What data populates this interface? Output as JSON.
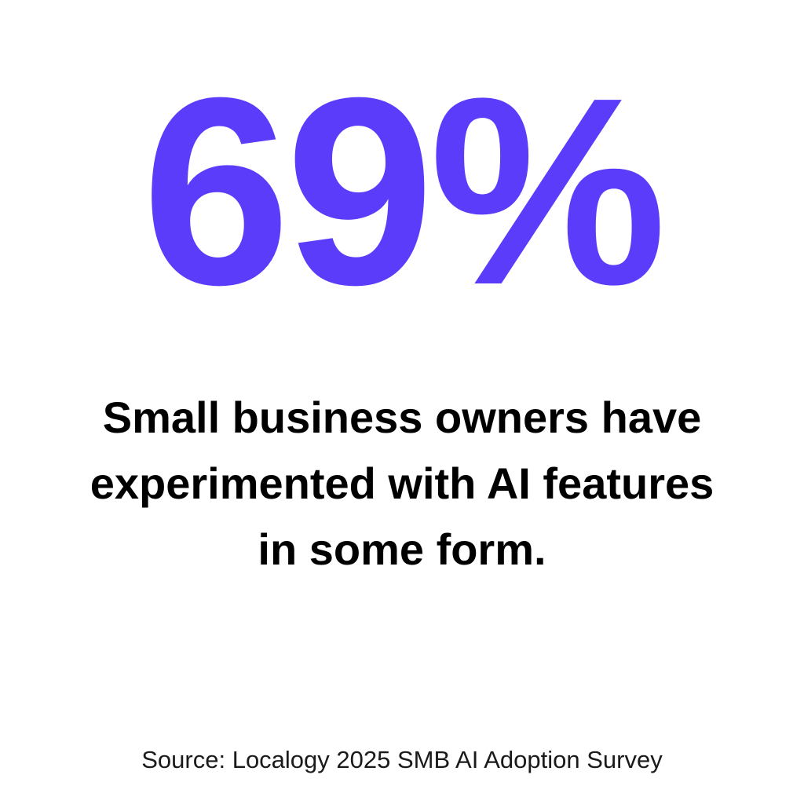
{
  "stat": {
    "value": "69%",
    "color": "#5b3cfb"
  },
  "description": {
    "text": "Small business owners have experimented with AI features in some form.",
    "color": "#000000"
  },
  "source": {
    "text": "Source: Localogy 2025 SMB AI Adoption Survey"
  }
}
